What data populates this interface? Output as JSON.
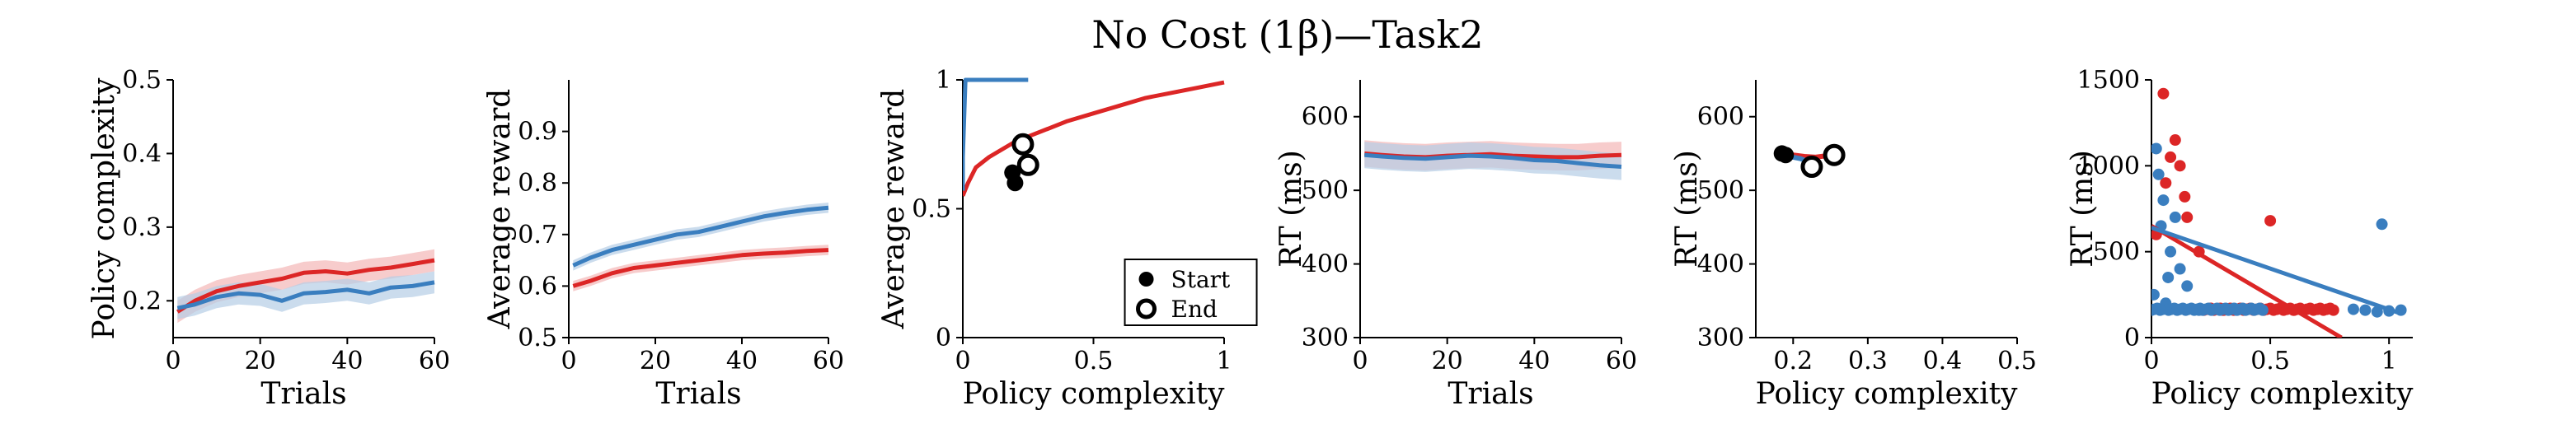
{
  "title": "No Cost (1β)—Task2",
  "colors": {
    "red": "#dc2626",
    "blue": "#3a7ebf",
    "red_band": "#f3b6b6",
    "blue_band": "#b5cde6"
  },
  "chart_data": [
    {
      "type": "line",
      "xlabel": "Trials",
      "ylabel": "Policy complexity",
      "xlim": [
        0,
        60
      ],
      "ylim": [
        0.15,
        0.5
      ],
      "xticks": [
        0,
        20,
        40,
        60
      ],
      "yticks": [
        0.2,
        0.3,
        0.4,
        0.5
      ],
      "xtick_labels": [
        "0",
        "20",
        "40",
        "60"
      ],
      "ytick_labels": [
        "0.2",
        "0.3",
        "0.4",
        "0.5"
      ],
      "band": 0.015,
      "series": [
        {
          "name": "red",
          "x": [
            1,
            5,
            10,
            15,
            20,
            25,
            30,
            35,
            40,
            45,
            50,
            55,
            60
          ],
          "y": [
            0.185,
            0.2,
            0.213,
            0.22,
            0.225,
            0.23,
            0.238,
            0.24,
            0.237,
            0.242,
            0.245,
            0.25,
            0.255
          ]
        },
        {
          "name": "blue",
          "x": [
            1,
            5,
            10,
            15,
            20,
            25,
            30,
            35,
            40,
            45,
            50,
            55,
            60
          ],
          "y": [
            0.19,
            0.195,
            0.205,
            0.21,
            0.208,
            0.2,
            0.21,
            0.212,
            0.215,
            0.21,
            0.218,
            0.22,
            0.225
          ]
        }
      ]
    },
    {
      "type": "line",
      "xlabel": "Trials",
      "ylabel": "Average reward",
      "xlim": [
        0,
        60
      ],
      "ylim": [
        0.5,
        1.0
      ],
      "xticks": [
        0,
        20,
        40,
        60
      ],
      "yticks": [
        0.5,
        0.6,
        0.7,
        0.8,
        0.9
      ],
      "xtick_labels": [
        "0",
        "20",
        "40",
        "60"
      ],
      "ytick_labels": [
        "0.5",
        "0.6",
        "0.7",
        "0.8",
        "0.9"
      ],
      "band": 0.01,
      "series": [
        {
          "name": "red",
          "x": [
            1,
            5,
            10,
            15,
            20,
            25,
            30,
            35,
            40,
            45,
            50,
            55,
            60
          ],
          "y": [
            0.6,
            0.61,
            0.625,
            0.635,
            0.64,
            0.645,
            0.65,
            0.655,
            0.66,
            0.663,
            0.665,
            0.668,
            0.67
          ]
        },
        {
          "name": "blue",
          "x": [
            1,
            5,
            10,
            15,
            20,
            25,
            30,
            35,
            40,
            45,
            50,
            55,
            60
          ],
          "y": [
            0.64,
            0.655,
            0.67,
            0.68,
            0.69,
            0.7,
            0.705,
            0.715,
            0.725,
            0.735,
            0.742,
            0.748,
            0.752
          ]
        }
      ]
    },
    {
      "type": "scatter",
      "xlabel": "Policy complexity",
      "ylabel": "Average reward",
      "xlim": [
        0,
        1
      ],
      "ylim": [
        0,
        1
      ],
      "xticks": [
        0,
        0.5,
        1
      ],
      "yticks": [
        0,
        0.5,
        1
      ],
      "xtick_labels": [
        "0",
        "0.5",
        "1"
      ],
      "ytick_labels": [
        "0",
        "0.5",
        "1"
      ],
      "curves": [
        {
          "name": "red",
          "x": [
            0,
            0.02,
            0.05,
            0.1,
            0.15,
            0.2,
            0.3,
            0.4,
            0.5,
            0.6,
            0.7,
            0.8,
            0.9,
            1.0
          ],
          "y": [
            0.55,
            0.6,
            0.66,
            0.7,
            0.73,
            0.76,
            0.8,
            0.84,
            0.87,
            0.9,
            0.93,
            0.95,
            0.97,
            0.99
          ]
        },
        {
          "name": "blue",
          "x": [
            0,
            0.0,
            0.01,
            0.05,
            0.1,
            0.15,
            0.2,
            0.25
          ],
          "y": [
            0.57,
            0.7,
            1.0,
            1.0,
            1.0,
            1.0,
            1.0,
            1.0
          ]
        }
      ],
      "markers": [
        {
          "name": "red-start",
          "color": "red",
          "kind": "start",
          "x": 0.2,
          "y": 0.6
        },
        {
          "name": "blue-start",
          "color": "blue",
          "kind": "start",
          "x": 0.19,
          "y": 0.64
        },
        {
          "name": "red-end",
          "color": "red",
          "kind": "end",
          "x": 0.25,
          "y": 0.67
        },
        {
          "name": "blue-end",
          "color": "blue",
          "kind": "end",
          "x": 0.23,
          "y": 0.75
        }
      ],
      "legend": {
        "position": "bottom-right",
        "items": [
          {
            "label": "Start",
            "kind": "start"
          },
          {
            "label": "End",
            "kind": "end"
          }
        ]
      }
    },
    {
      "type": "line",
      "xlabel": "Trials",
      "ylabel": "RT (ms)",
      "xlim": [
        0,
        60
      ],
      "ylim": [
        300,
        650
      ],
      "xticks": [
        0,
        20,
        40,
        60
      ],
      "yticks": [
        300,
        400,
        500,
        600
      ],
      "xtick_labels": [
        "0",
        "20",
        "40",
        "60"
      ],
      "ytick_labels": [
        "300",
        "400",
        "500",
        "600"
      ],
      "band": 18,
      "series": [
        {
          "name": "red",
          "x": [
            1,
            5,
            10,
            15,
            20,
            25,
            30,
            35,
            40,
            45,
            50,
            55,
            60
          ],
          "y": [
            550,
            548,
            546,
            545,
            547,
            548,
            549,
            547,
            546,
            545,
            545,
            547,
            548
          ]
        },
        {
          "name": "blue",
          "x": [
            1,
            5,
            10,
            15,
            20,
            25,
            30,
            35,
            40,
            45,
            50,
            55,
            60
          ],
          "y": [
            548,
            546,
            544,
            543,
            545,
            547,
            546,
            544,
            541,
            540,
            537,
            534,
            532
          ]
        }
      ]
    },
    {
      "type": "scatter",
      "xlabel": "Policy complexity",
      "ylabel": "RT (ms)",
      "xlim": [
        0.15,
        0.5
      ],
      "ylim": [
        300,
        650
      ],
      "xticks": [
        0.2,
        0.3,
        0.4,
        0.5
      ],
      "yticks": [
        300,
        400,
        500,
        600
      ],
      "xtick_labels": [
        "0.2",
        "0.3",
        "0.4",
        "0.5"
      ],
      "ytick_labels": [
        "300",
        "400",
        "500",
        "600"
      ],
      "traj": [
        {
          "name": "red",
          "x": [
            0.185,
            0.2,
            0.215,
            0.23,
            0.245,
            0.255
          ],
          "y": [
            550,
            548,
            546,
            545,
            547,
            548
          ]
        },
        {
          "name": "blue",
          "x": [
            0.19,
            0.2,
            0.21,
            0.215,
            0.22,
            0.225
          ],
          "y": [
            548,
            545,
            543,
            541,
            536,
            532
          ]
        }
      ],
      "markers": [
        {
          "name": "red-start",
          "color": "red",
          "kind": "start",
          "x": 0.185,
          "y": 550
        },
        {
          "name": "blue-start",
          "color": "blue",
          "kind": "start",
          "x": 0.19,
          "y": 548
        },
        {
          "name": "red-end",
          "color": "red",
          "kind": "end",
          "x": 0.255,
          "y": 548
        },
        {
          "name": "blue-end",
          "color": "blue",
          "kind": "end",
          "x": 0.225,
          "y": 532
        }
      ]
    },
    {
      "type": "scatter",
      "xlabel": "Policy complexity",
      "ylabel": "RT (ms)",
      "xlim": [
        0,
        1.1
      ],
      "ylim": [
        0,
        1500
      ],
      "xticks": [
        0,
        0.5,
        1
      ],
      "yticks": [
        0,
        500,
        1000,
        1500
      ],
      "xtick_labels": [
        "0",
        "0.5",
        "1"
      ],
      "ytick_labels": [
        "0",
        "500",
        "1000",
        "1500"
      ],
      "fits": [
        {
          "name": "red",
          "x": [
            0,
            0.8
          ],
          "y": [
            650,
            0
          ]
        },
        {
          "name": "blue",
          "x": [
            0,
            1.05
          ],
          "y": [
            640,
            140
          ]
        }
      ],
      "points": {
        "red": [
          [
            0.05,
            1420
          ],
          [
            0.1,
            1150
          ],
          [
            0.12,
            1000
          ],
          [
            0.5,
            680
          ],
          [
            0.06,
            900
          ],
          [
            0.15,
            700
          ],
          [
            0.2,
            500
          ],
          [
            0.02,
            600
          ],
          [
            0.3,
            160
          ],
          [
            0.4,
            165
          ],
          [
            0.6,
            160
          ],
          [
            0.7,
            165
          ],
          [
            0.25,
            170
          ],
          [
            0.08,
            1050
          ],
          [
            0.14,
            820
          ]
        ],
        "blue": [
          [
            0.97,
            660
          ],
          [
            0.03,
            950
          ],
          [
            0.05,
            800
          ],
          [
            0.1,
            700
          ],
          [
            0.02,
            1100
          ],
          [
            0.08,
            500
          ],
          [
            0.12,
            400
          ],
          [
            0.15,
            300
          ],
          [
            0.06,
            200
          ],
          [
            0.2,
            160
          ],
          [
            0.9,
            160
          ],
          [
            1.0,
            155
          ],
          [
            1.05,
            160
          ],
          [
            0.85,
            165
          ],
          [
            0.95,
            150
          ],
          [
            0.04,
            650
          ],
          [
            0.07,
            350
          ],
          [
            0.01,
            250
          ]
        ]
      }
    }
  ]
}
